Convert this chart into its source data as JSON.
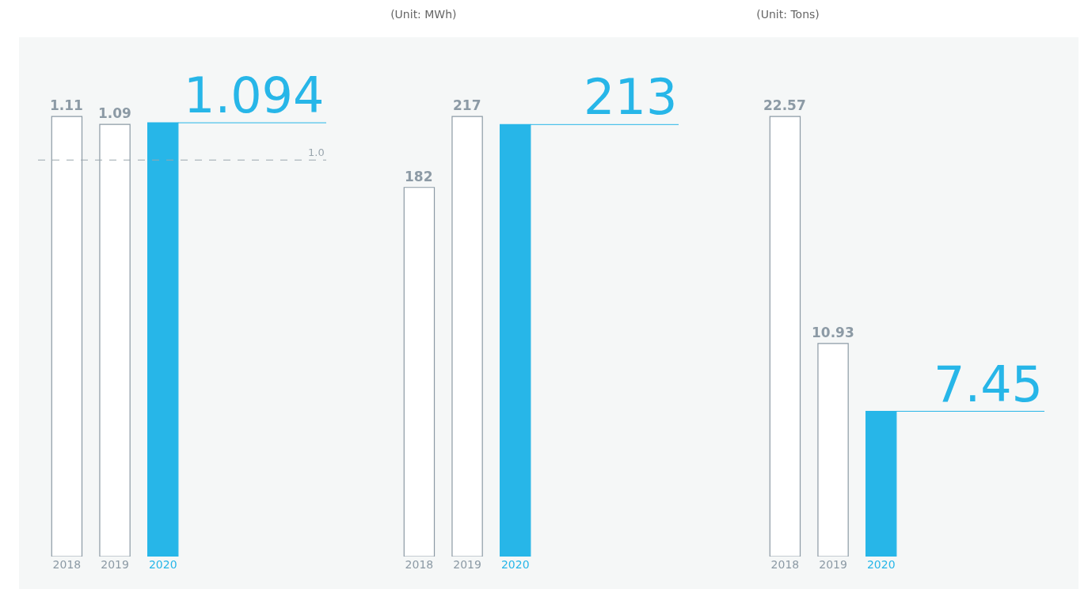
{
  "chart_data": [
    {
      "type": "bar",
      "categories": [
        "2018",
        "2019",
        "2020"
      ],
      "values": [
        1.11,
        1.09,
        1.094
      ],
      "colors": [
        "#ffffff",
        "#ffffff",
        "#27b6e8"
      ],
      "value_labels": [
        "1.11",
        "1.09",
        "1.094"
      ],
      "ref_lines": [
        {
          "axis": "y",
          "value": 1.0,
          "label": "1.0",
          "line_style": "dashed",
          "color": "#9aa6ae"
        }
      ]
    },
    {
      "type": "bar",
      "title": "(Unit: MWh)",
      "categories": [
        "2018",
        "2019",
        "2020"
      ],
      "values": [
        182,
        217,
        213
      ],
      "colors": [
        "#ffffff",
        "#ffffff",
        "#27b6e8"
      ],
      "value_labels": [
        "182",
        "217",
        "213"
      ]
    },
    {
      "type": "bar",
      "title": "(Unit: Tons)",
      "categories": [
        "2018",
        "2019",
        "2020"
      ],
      "values": [
        22.57,
        10.93,
        7.45
      ],
      "colors": [
        "#ffffff",
        "#ffffff",
        "#27b6e8"
      ],
      "value_labels": [
        "22.57",
        "10.93",
        "7.45"
      ]
    }
  ]
}
